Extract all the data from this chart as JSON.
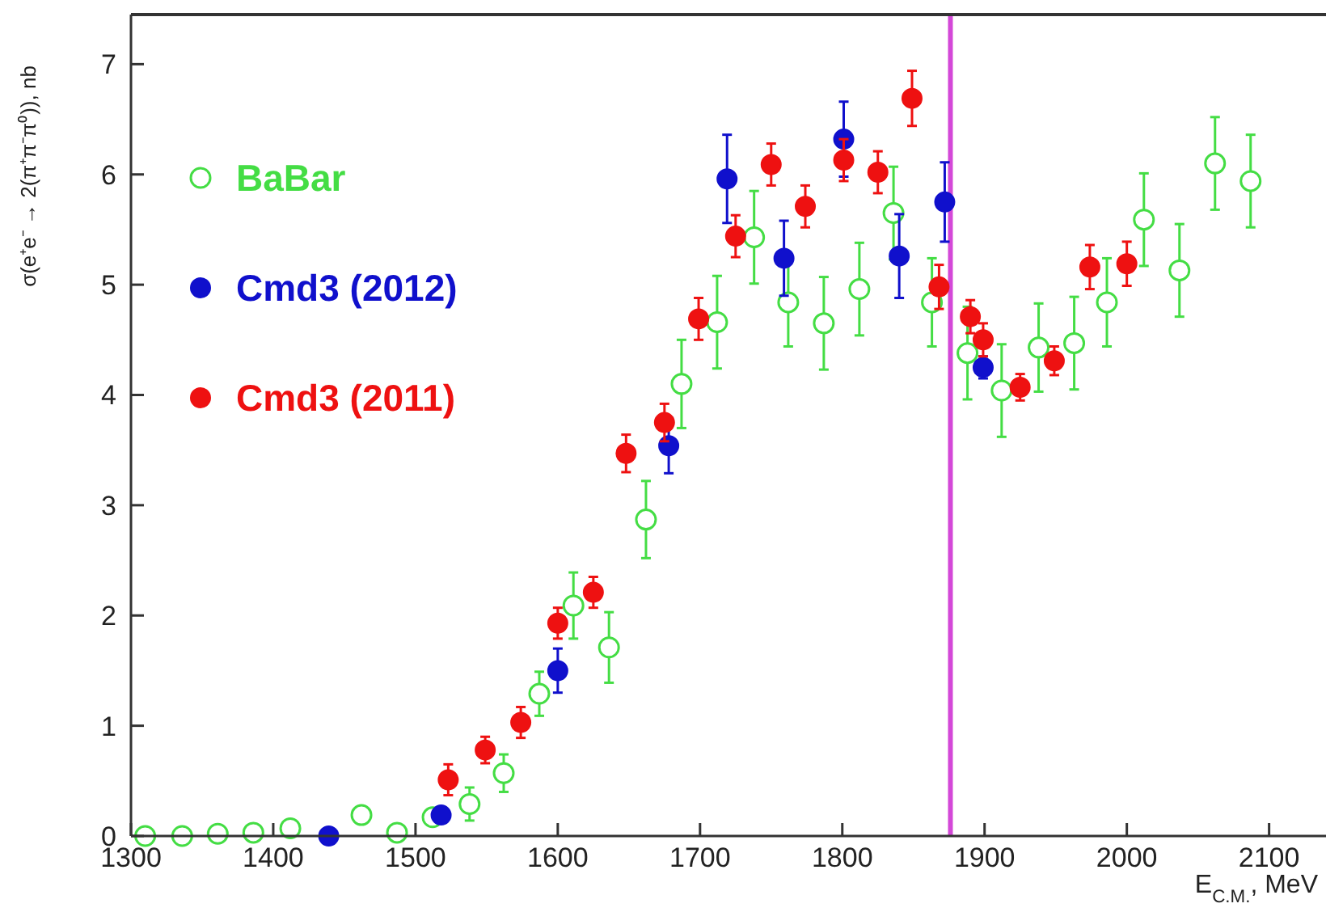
{
  "chart_data": {
    "type": "scatter",
    "ylabel": "σ(e⁺e⁻ → 2(π⁺π⁻π⁰)), nb",
    "xlabel": "E$_{C.M.}$, MeV",
    "xlim": [
      1300,
      2140
    ],
    "xticks": [
      1300,
      1400,
      1500,
      1600,
      1700,
      1800,
      1900,
      2000,
      2100
    ],
    "ylim": [
      0,
      7.45
    ],
    "yticks": [
      0,
      1,
      2,
      3,
      4,
      5,
      6,
      7
    ],
    "grid": false,
    "legend": "left",
    "marker": "circle",
    "ref_lines": [
      {
        "axis": "x",
        "value": 1876,
        "color": "#d448d8"
      }
    ],
    "series": [
      {
        "name": "BaBar",
        "color": "#44dd44",
        "marker": "circle-open",
        "x": [
          1310,
          1336,
          1361,
          1386,
          1412,
          1462,
          1487,
          1512,
          1538,
          1562,
          1587,
          1611,
          1636,
          1662,
          1687,
          1712,
          1738,
          1762,
          1787,
          1812,
          1836,
          1863,
          1888,
          1912,
          1938,
          1963,
          1986,
          2012,
          2037,
          2062,
          2087
        ],
        "values": [
          0,
          0,
          0.02,
          0.03,
          0.07,
          0.19,
          0.03,
          0.17,
          0.29,
          0.57,
          1.29,
          2.09,
          1.71,
          2.87,
          4.1,
          4.66,
          5.43,
          4.84,
          4.65,
          4.96,
          5.65,
          4.84,
          4.38,
          4.04,
          4.43,
          4.47,
          4.84,
          5.59,
          5.13,
          6.1,
          5.94
        ],
        "errors": [
          null,
          null,
          null,
          null,
          null,
          null,
          null,
          null,
          0.15,
          0.17,
          0.2,
          0.3,
          0.32,
          0.35,
          0.4,
          0.42,
          0.42,
          0.4,
          0.42,
          0.42,
          0.42,
          0.4,
          0.42,
          0.42,
          0.4,
          0.42,
          0.4,
          0.42,
          0.42,
          0.42,
          0.42
        ]
      },
      {
        "name": "Cmd3 (2012)",
        "color": "#1010cc",
        "x": [
          1439,
          1518,
          1600,
          1678,
          1719,
          1759,
          1801,
          1840,
          1872,
          1899
        ],
        "values": [
          0,
          0.19,
          1.5,
          3.54,
          5.96,
          5.24,
          6.32,
          5.26,
          5.75,
          4.25
        ],
        "errors": [
          null,
          null,
          0.2,
          0.25,
          0.4,
          0.34,
          0.34,
          0.38,
          0.36,
          0.1
        ]
      },
      {
        "name": "Cmd3 (2011)",
        "color": "#ee1111",
        "x": [
          1523,
          1549,
          1574,
          1600,
          1625,
          1648,
          1675,
          1699,
          1725,
          1750,
          1774,
          1801,
          1825,
          1849,
          1868,
          1890,
          1899,
          1925,
          1949,
          1974,
          2000
        ],
        "values": [
          0.51,
          0.78,
          1.03,
          1.93,
          2.21,
          3.47,
          3.75,
          4.69,
          5.44,
          6.09,
          5.71,
          6.13,
          6.02,
          6.69,
          4.98,
          4.71,
          4.5,
          4.07,
          4.31,
          5.16,
          5.19
        ],
        "errors": [
          0.14,
          0.12,
          0.14,
          0.14,
          0.14,
          0.17,
          0.17,
          0.19,
          0.19,
          0.19,
          0.19,
          0.19,
          0.19,
          0.25,
          0.2,
          0.15,
          0.15,
          0.12,
          0.13,
          0.2,
          0.2
        ]
      }
    ]
  }
}
